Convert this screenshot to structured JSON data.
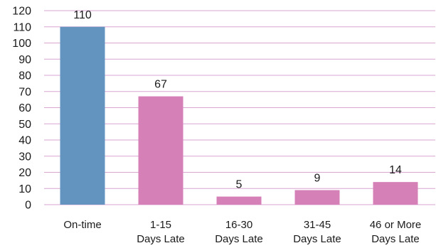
{
  "chart_data": {
    "type": "bar",
    "categories": [
      [
        "On-time"
      ],
      [
        "1-15",
        "Days Late"
      ],
      [
        "16-30",
        "Days Late"
      ],
      [
        "31-45",
        "Days Late"
      ],
      [
        "46 or More",
        "Days Late"
      ]
    ],
    "values": [
      110,
      67,
      5,
      9,
      14
    ],
    "data_labels": [
      "110",
      "67",
      "5",
      "9",
      "14"
    ],
    "bar_colors": [
      "#6394bf",
      "#d680b8",
      "#d680b8",
      "#d680b8",
      "#d680b8"
    ],
    "gridline_color": "#d9a6d0",
    "ylim": [
      0,
      120
    ],
    "yticks": [
      0,
      10,
      20,
      30,
      40,
      50,
      60,
      70,
      80,
      90,
      100,
      110,
      120
    ],
    "grid": true,
    "legend": "none",
    "title": "",
    "xlabel": "",
    "ylabel": ""
  }
}
